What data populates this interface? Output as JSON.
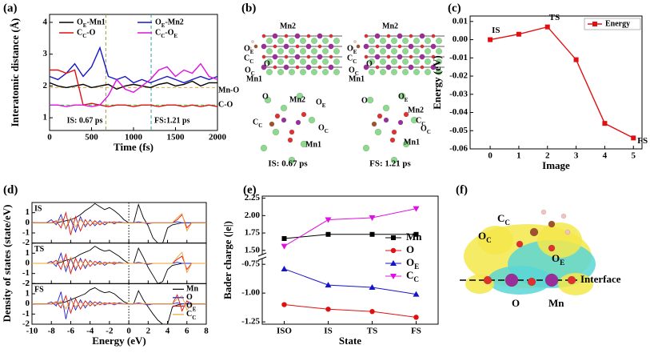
{
  "chart_data": [
    {
      "type": "line",
      "panel_label": "(a)",
      "xlabel": "Time (fs)",
      "ylabel": "Interatomic distance (Å)",
      "x": [
        0,
        100,
        200,
        300,
        400,
        500,
        600,
        700,
        800,
        900,
        1000,
        1100,
        1200,
        1300,
        1400,
        1500,
        1600,
        1700,
        1800,
        1900,
        2000
      ],
      "xlim": [
        0,
        2000
      ],
      "xticks": [
        0,
        500,
        1000,
        1500,
        2000
      ],
      "ylim": [
        0.6,
        4.25
      ],
      "yticks": [
        1,
        2,
        3,
        4
      ],
      "series": [
        {
          "name": "OE-Mn1",
          "color": "#000000",
          "values": [
            2.1,
            2.0,
            1.95,
            2.0,
            2.05,
            1.95,
            2.0,
            2.05,
            1.9,
            2.0,
            2.05,
            2.0,
            1.95,
            2.05,
            2.1,
            2.0,
            2.05,
            2.15,
            2.0,
            2.1,
            2.1
          ]
        },
        {
          "name": "OE-Mn2",
          "color": "#1515c8",
          "values": [
            2.3,
            2.2,
            2.4,
            2.7,
            2.3,
            2.6,
            3.2,
            2.3,
            2.2,
            2.3,
            2.1,
            2.2,
            2.1,
            2.2,
            2.3,
            2.2,
            2.1,
            2.2,
            2.3,
            2.2,
            2.3
          ]
        },
        {
          "name": "CC-O",
          "color": "#e01010",
          "values": [
            2.5,
            2.5,
            2.4,
            2.5,
            1.4,
            1.45,
            1.4,
            1.35,
            1.4,
            1.4,
            1.35,
            1.4,
            1.4,
            1.35,
            1.4,
            1.4,
            1.35,
            1.4,
            1.35,
            1.4,
            1.35
          ]
        },
        {
          "name": "CC-OE",
          "color": "#e010e0",
          "values": [
            1.4,
            1.4,
            1.35,
            1.4,
            1.4,
            1.35,
            1.4,
            1.7,
            2.2,
            1.9,
            1.8,
            2.0,
            2.2,
            2.5,
            2.6,
            2.3,
            2.5,
            2.4,
            2.7,
            2.3,
            2.2
          ]
        }
      ],
      "hlines": [
        {
          "name": "Mn-O",
          "value": 1.95,
          "color": "#e8a33c"
        },
        {
          "name": "C-O",
          "value": 1.4,
          "color": "#33cc33"
        }
      ],
      "vlines": [
        {
          "name": "IS: 0.67 ps",
          "value": 670,
          "color": "#9a9a3a"
        },
        {
          "name": "FS:1.21 ps",
          "value": 1210,
          "color": "#2e9e9e"
        }
      ],
      "legend": "upper"
    },
    {
      "type": "line",
      "panel_label": "(c)",
      "xlabel": "Image",
      "ylabel": "Energy (eV)",
      "x": [
        0,
        1,
        2,
        3,
        4,
        5
      ],
      "xlim": [
        -0.7,
        5.3
      ],
      "xticks": [
        0,
        1,
        2,
        3,
        4,
        5
      ],
      "ylim": [
        -0.06,
        0.013
      ],
      "yticks": [
        0.01,
        {
          "value": 0,
          "label": "0.00"
        },
        -0.01,
        -0.02,
        -0.03,
        -0.04,
        -0.05,
        -0.06
      ],
      "series": [
        {
          "name": "Energy",
          "color": "#e01010",
          "values": [
            0,
            0.003,
            0.007,
            -0.011,
            -0.046,
            -0.054
          ]
        }
      ],
      "point_labels": [
        "IS",
        null,
        "TS",
        null,
        null,
        "FS"
      ],
      "markers": true,
      "legend": "upper right"
    },
    {
      "type": "multiline",
      "panel_label": "(d)",
      "xlabel": "Energy (eV)",
      "ylabel": "Density of states (state/eV)",
      "x": [
        -10,
        -9.5,
        -9,
        -8.5,
        -8,
        -7.5,
        -7,
        -6.5,
        -6,
        -5.5,
        -5,
        -4.5,
        -4,
        -3.5,
        -3,
        -2.5,
        -2,
        -1.5,
        -1,
        -0.5,
        0,
        0.5,
        1,
        1.5,
        2,
        2.5,
        3,
        3.5,
        4,
        4.5,
        5,
        5.5,
        6,
        6.5,
        7,
        7.5,
        8
      ],
      "xlim": [
        -10,
        8
      ],
      "xticks": [
        -10,
        -8,
        -6,
        -4,
        -2,
        0,
        2,
        4,
        6,
        8
      ],
      "vlines": [
        0
      ],
      "series": [
        {
          "name": "Mn",
          "color": "#000000"
        },
        {
          "name": "O",
          "color": "#2020d0"
        },
        {
          "name": "OE",
          "color": "#e01010"
        },
        {
          "name": "CC",
          "color": "#f0a030"
        }
      ],
      "legend": "right",
      "subplots": [
        {
          "label": "IS",
          "ylim": [
            -2,
            2
          ],
          "yticks": [
            -2,
            -1,
            0,
            1
          ],
          "values": [
            [
              0,
              0,
              0,
              0,
              0,
              0,
              0.1,
              0.2,
              0.3,
              0.5,
              0.8,
              1.2,
              1.5,
              1.9,
              1.6,
              1.3,
              1.5,
              1.2,
              0.8,
              0.3,
              0,
              0,
              1.8,
              0.5,
              -0.3,
              -1.5,
              -2,
              -2,
              -0.5,
              -0.2,
              -0.1,
              0,
              0,
              0,
              0,
              0,
              0
            ],
            [
              0,
              0,
              0,
              0,
              0.3,
              -0.2,
              0.8,
              -0.6,
              0.4,
              -0.9,
              0.6,
              -0.4,
              0.3,
              -0.3,
              0.2,
              -0.2,
              0.1,
              -0.1,
              0.1,
              0,
              0,
              0,
              0.1,
              0,
              -0.1,
              0,
              0,
              0,
              0,
              0,
              0.1,
              0,
              0,
              0,
              0,
              0,
              0
            ],
            [
              0,
              0,
              0,
              0,
              0,
              0.2,
              -0.5,
              1.0,
              -1.2,
              0.6,
              -0.8,
              0.3,
              -0.3,
              0.2,
              -0.2,
              0.1,
              0,
              0.1,
              0,
              0,
              0,
              0,
              0,
              0,
              0,
              0,
              0,
              0,
              0,
              0,
              0.3,
              0.8,
              -0.5,
              0,
              0,
              0,
              0
            ],
            [
              0,
              0,
              0,
              0,
              0,
              0,
              0.4,
              -0.5,
              0.5,
              -0.4,
              0.3,
              -0.2,
              0.2,
              -0.1,
              0,
              0,
              0,
              0,
              0,
              0,
              0,
              0,
              0,
              0,
              0,
              0,
              0,
              0,
              0,
              0,
              0.5,
              0.9,
              -0.8,
              0,
              0,
              0,
              0
            ]
          ]
        },
        {
          "label": "TS",
          "ylim": [
            -2,
            2
          ],
          "yticks": [
            -2,
            -1,
            0,
            1
          ],
          "values": [
            [
              0,
              0,
              0,
              0,
              0,
              0,
              0.1,
              0.3,
              0.4,
              0.6,
              0.9,
              1.1,
              1.3,
              1.7,
              1.4,
              1.2,
              1.3,
              1.0,
              0.7,
              0.3,
              0,
              0,
              1.5,
              0.6,
              -0.4,
              -1.2,
              -2,
              -1.8,
              -0.6,
              -0.2,
              -0.1,
              0,
              0,
              0,
              0,
              0,
              0
            ],
            [
              0,
              0,
              0,
              0,
              0.2,
              -0.3,
              1.0,
              -0.8,
              0.5,
              -0.7,
              0.5,
              -0.5,
              0.3,
              -0.2,
              0.2,
              -0.2,
              0.1,
              -0.1,
              0.1,
              0,
              0,
              0,
              0.1,
              0,
              -0.1,
              0,
              0,
              0,
              0,
              0,
              0.1,
              0,
              0,
              0,
              0,
              0,
              0
            ],
            [
              0,
              0,
              0,
              0,
              0,
              0.3,
              -0.6,
              0.9,
              -1.0,
              0.5,
              -0.6,
              0.4,
              -0.3,
              0.2,
              -0.1,
              0.1,
              0,
              0.1,
              0,
              0,
              0,
              0,
              0,
              0,
              0,
              0,
              0,
              0,
              0,
              0,
              0.4,
              0.7,
              -0.6,
              0,
              0,
              0,
              0
            ],
            [
              0,
              0,
              0,
              0,
              0,
              0,
              0.3,
              -0.4,
              0.6,
              -0.5,
              0.3,
              -0.3,
              0.2,
              -0.1,
              0,
              0,
              0,
              0,
              0,
              0,
              0,
              0,
              0,
              0,
              0,
              0,
              0,
              0,
              0,
              0,
              0.6,
              1.1,
              -0.9,
              0,
              0,
              0,
              0
            ]
          ]
        },
        {
          "label": "FS",
          "ylim": [
            -2,
            2
          ],
          "yticks": [
            -2,
            -1,
            0,
            1,
            2
          ],
          "values": [
            [
              0,
              0,
              0,
              0,
              0,
              0,
              0.1,
              0.2,
              0.4,
              0.6,
              0.8,
              1.0,
              1.4,
              1.6,
              1.3,
              1.1,
              1.2,
              1.0,
              0.6,
              0.2,
              0,
              0,
              1.3,
              0.4,
              -0.3,
              -1.0,
              -1.6,
              -2,
              -2,
              -0.3,
              -0.1,
              0,
              0,
              0,
              0,
              0,
              0
            ],
            [
              0,
              0,
              0,
              0,
              0.2,
              -0.2,
              1.2,
              -1.5,
              0.6,
              -0.6,
              0.4,
              -0.4,
              0.3,
              -0.2,
              0.2,
              -0.1,
              0.1,
              -0.1,
              0.1,
              0,
              0,
              0,
              0.1,
              0,
              -0.1,
              0,
              0,
              0,
              0,
              0,
              0.1,
              0,
              0,
              0,
              0,
              0,
              0
            ],
            [
              0,
              0,
              0,
              0,
              0,
              0.2,
              -0.4,
              0.8,
              -0.9,
              0.5,
              -0.5,
              0.3,
              -0.2,
              0.2,
              -0.1,
              0.1,
              0,
              0.1,
              0,
              0,
              0,
              0,
              0,
              0,
              0,
              0,
              0,
              0,
              0,
              0,
              0.9,
              -0.7,
              0.3,
              0,
              0,
              0,
              0
            ],
            [
              0,
              0,
              0,
              0,
              0,
              0,
              0.3,
              -0.5,
              0.4,
              -0.3,
              0.2,
              -0.2,
              0.1,
              -0.1,
              0,
              0,
              0,
              0,
              0,
              0,
              0,
              0,
              0,
              0,
              0,
              0,
              0,
              0,
              0,
              0,
              0.5,
              0.8,
              -0.6,
              0,
              0,
              0,
              0
            ]
          ]
        }
      ]
    },
    {
      "type": "brokenaxis",
      "panel_label": "(e)",
      "xlabel": "State",
      "ylabel": "Bader charge (|e|)",
      "categories": [
        "ISO",
        "IS",
        "TS",
        "FS"
      ],
      "ylim_upper": [
        1.44,
        2.28
      ],
      "yticks_upper": [
        {
          "value": 1.5,
          "label": "1.50"
        },
        1.75,
        {
          "value": 2,
          "label": "2.00"
        },
        2.25
      ],
      "ylim": [
        -1.27,
        -0.7
      ],
      "yticks": [
        -1.25,
        {
          "value": -1,
          "label": "-1.00"
        },
        -0.75
      ],
      "series": [
        {
          "name": "Mn",
          "color": "#000000",
          "marker": "square",
          "values": [
            1.67,
            1.73,
            1.73,
            1.73
          ]
        },
        {
          "name": "O",
          "color": "#e01010",
          "marker": "circle",
          "values": [
            -1.1,
            -1.14,
            -1.16,
            -1.21
          ]
        },
        {
          "name": "OE",
          "color": "#1515c8",
          "marker": "triangle-up",
          "values": [
            -0.79,
            -0.93,
            -0.95,
            -1.01
          ]
        },
        {
          "name": "CC",
          "color": "#e010e0",
          "marker": "triangle-down",
          "values": [
            1.56,
            1.94,
            1.97,
            2.1
          ]
        }
      ],
      "legend": "right"
    }
  ],
  "structures": [
    {
      "panel_label": "(b)",
      "labels": [
        "Mn2",
        "OE",
        "CC",
        "O",
        "OC",
        "Mn1",
        "Mn2",
        "OE",
        "CC",
        "O",
        "OC",
        "Mn1",
        "O",
        "Mn2",
        "OE",
        "CC",
        "OC",
        "Mn1",
        "O",
        "OE",
        "Mn2",
        "CC",
        "OC",
        "Mn1"
      ],
      "captions": [
        "IS: 0.67 ps",
        "FS: 1.21 ps"
      ]
    },
    {
      "panel_label": "(f)",
      "labels": [
        "CC",
        "OC",
        "OE",
        "O",
        "Mn",
        "Interface"
      ]
    }
  ]
}
